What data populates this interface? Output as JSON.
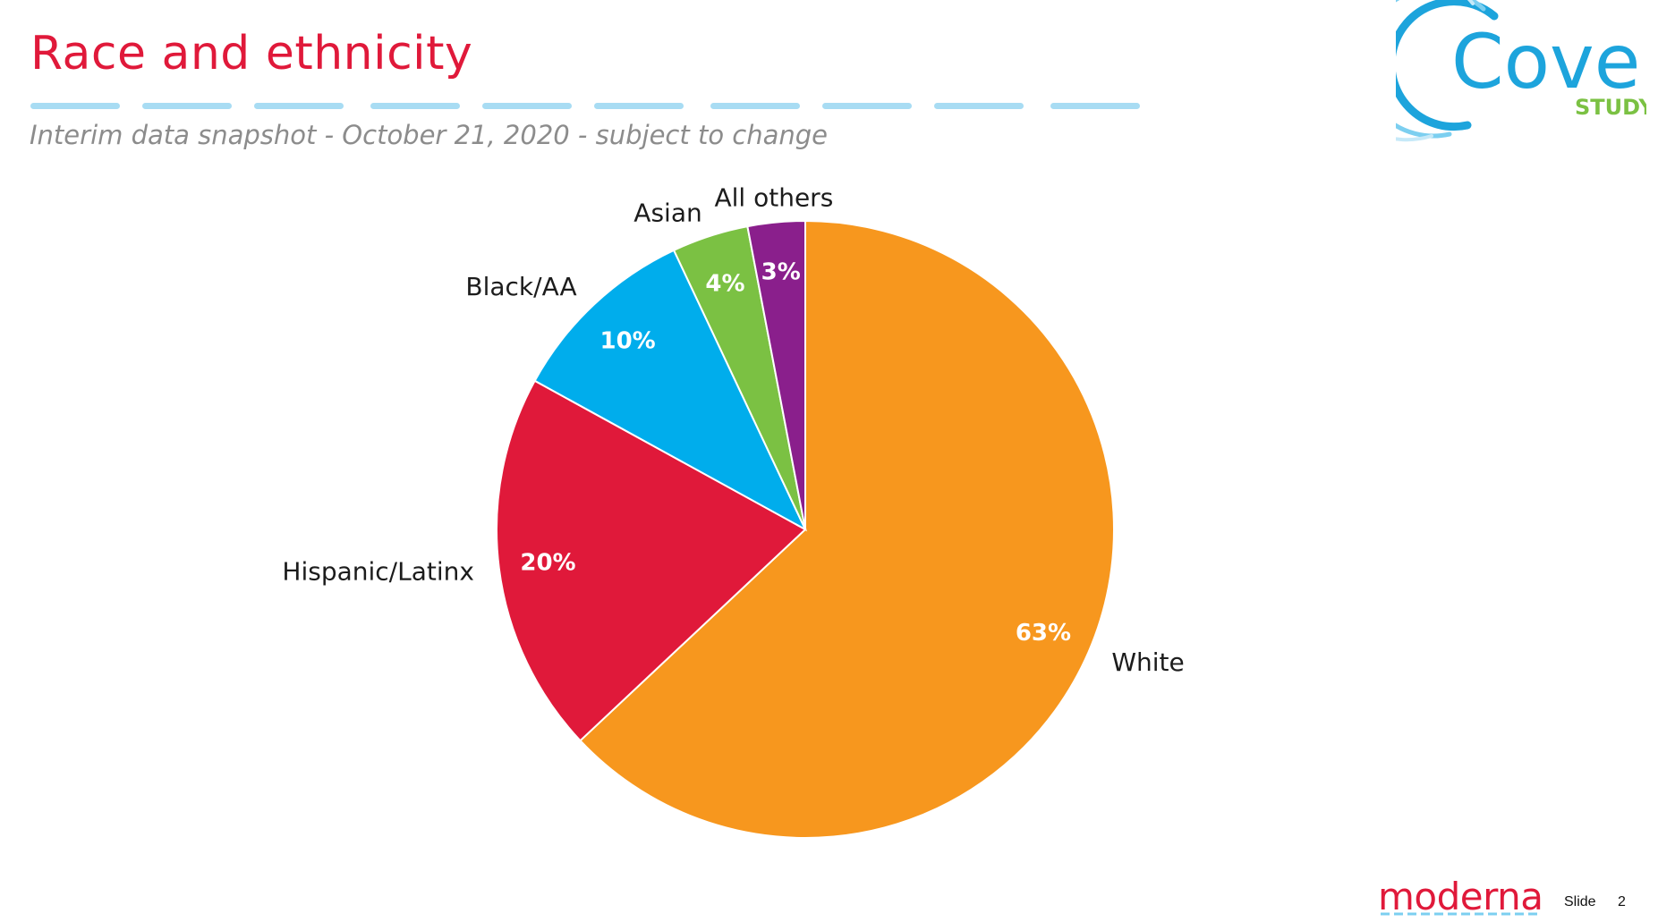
{
  "slide": {
    "title": "Race and ethnicity",
    "subtitle": "Interim data snapshot - October 21, 2020 - subject to change",
    "slide_label": "Slide",
    "slide_number": "2"
  },
  "brand": {
    "study_logo_main": "Cove",
    "study_logo_sub": "STUDY",
    "company": "moderna"
  },
  "colors": {
    "title": "#e0193a",
    "white": "#f7971e",
    "hispanic": "#e0193a",
    "black": "#00adec",
    "asian": "#7bc143",
    "others": "#8a1f8c",
    "dash": "#a8dcf3"
  },
  "chart_data": {
    "type": "pie",
    "title": "Race and ethnicity",
    "start": "12 o'clock, clockwise",
    "slices": [
      {
        "name": "White",
        "value": 63,
        "label": "63%",
        "color": "#f7971e"
      },
      {
        "name": "Hispanic/Latinx",
        "value": 20,
        "label": "20%",
        "color": "#e0193a"
      },
      {
        "name": "Black/AA",
        "value": 10,
        "label": "10%",
        "color": "#00adec"
      },
      {
        "name": "Asian",
        "value": 4,
        "label": "4%",
        "color": "#7bc143"
      },
      {
        "name": "All others",
        "value": 3,
        "label": "3%",
        "color": "#8a1f8c"
      }
    ]
  }
}
